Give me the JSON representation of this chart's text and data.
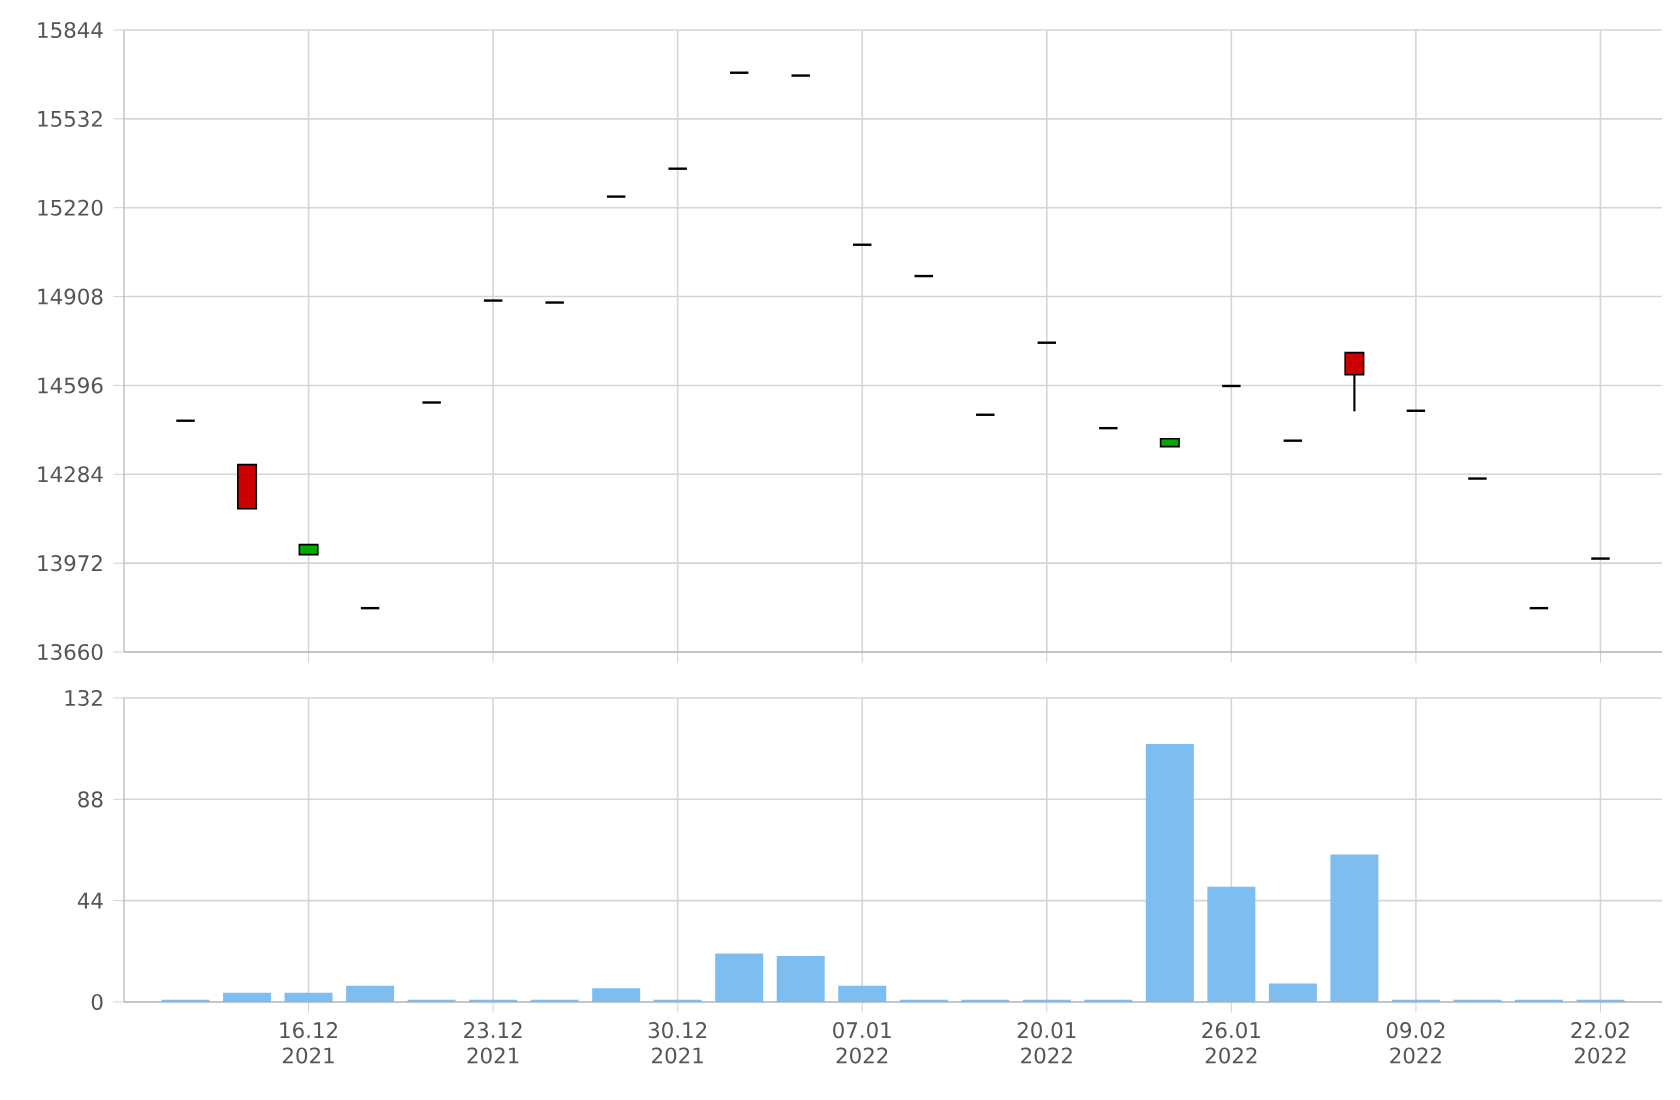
{
  "chart_data": [
    {
      "type": "candlestick",
      "categories": [
        null,
        null,
        null,
        null,
        null,
        null,
        null,
        null,
        null,
        null,
        null,
        null,
        null,
        null,
        null,
        null,
        null,
        null,
        null,
        null,
        null,
        null,
        null,
        null
      ],
      "ohlc": [
        [
          14472,
          14472,
          14472,
          14472
        ],
        [
          14318,
          14318,
          14163,
          14163
        ],
        [
          14002,
          14037,
          14002,
          14037
        ],
        [
          13814,
          13814,
          13814,
          13814
        ],
        [
          14536,
          14536,
          14536,
          14536
        ],
        [
          14894,
          14894,
          14894,
          14894
        ],
        [
          14887,
          14887,
          14887,
          14887
        ],
        [
          15259,
          15259,
          15259,
          15259
        ],
        [
          15357,
          15357,
          15357,
          15357
        ],
        [
          15694,
          15694,
          15694,
          15694
        ],
        [
          15684,
          15684,
          15684,
          15684
        ],
        [
          15090,
          15090,
          15090,
          15090
        ],
        [
          14980,
          14980,
          14980,
          14980
        ],
        [
          14493,
          14493,
          14493,
          14493
        ],
        [
          14746,
          14746,
          14746,
          14746
        ],
        [
          14446,
          14446,
          14446,
          14446
        ],
        [
          14381,
          14409,
          14381,
          14409
        ],
        [
          14594,
          14594,
          14594,
          14594
        ],
        [
          14402,
          14402,
          14402,
          14402
        ],
        [
          14711,
          14711,
          14505,
          14634
        ],
        [
          14507,
          14507,
          14507,
          14507
        ],
        [
          14269,
          14269,
          14269,
          14269
        ],
        [
          13814,
          13814,
          13814,
          13814
        ],
        [
          13988,
          13988,
          13988,
          13988
        ]
      ],
      "colors": [
        "#000000",
        "#cc0000",
        "#00aa00",
        "#000000",
        "#000000",
        "#000000",
        "#000000",
        "#000000",
        "#000000",
        "#000000",
        "#000000",
        "#000000",
        "#000000",
        "#000000",
        "#000000",
        "#000000",
        "#00aa00",
        "#000000",
        "#000000",
        "#cc0000",
        "#000000",
        "#000000",
        "#000000",
        "#000000"
      ],
      "ylim": [
        13660,
        15844
      ],
      "yticks": [
        13660,
        13972,
        14284,
        14596,
        14908,
        15220,
        15532,
        15844
      ],
      "grid": true,
      "tick_labels": "y"
    },
    {
      "type": "bar",
      "categories": [
        null,
        null,
        "16.12 2021",
        null,
        null,
        "23.12 2021",
        null,
        null,
        "30.12 2021",
        null,
        null,
        "07.01 2022",
        null,
        null,
        "20.01 2022",
        null,
        null,
        "26.01 2022",
        null,
        null,
        "09.02 2022",
        null,
        null,
        "22.02 2022"
      ],
      "values": [
        1,
        4,
        4,
        7,
        1,
        1,
        1,
        6,
        1,
        21,
        20,
        7,
        1,
        1,
        1,
        1,
        112,
        50,
        8,
        64,
        1,
        1,
        1,
        1
      ],
      "color": "#7dbdf0",
      "ylim": [
        0,
        132
      ],
      "yticks": [
        0,
        44,
        88,
        132
      ],
      "grid": true
    }
  ]
}
